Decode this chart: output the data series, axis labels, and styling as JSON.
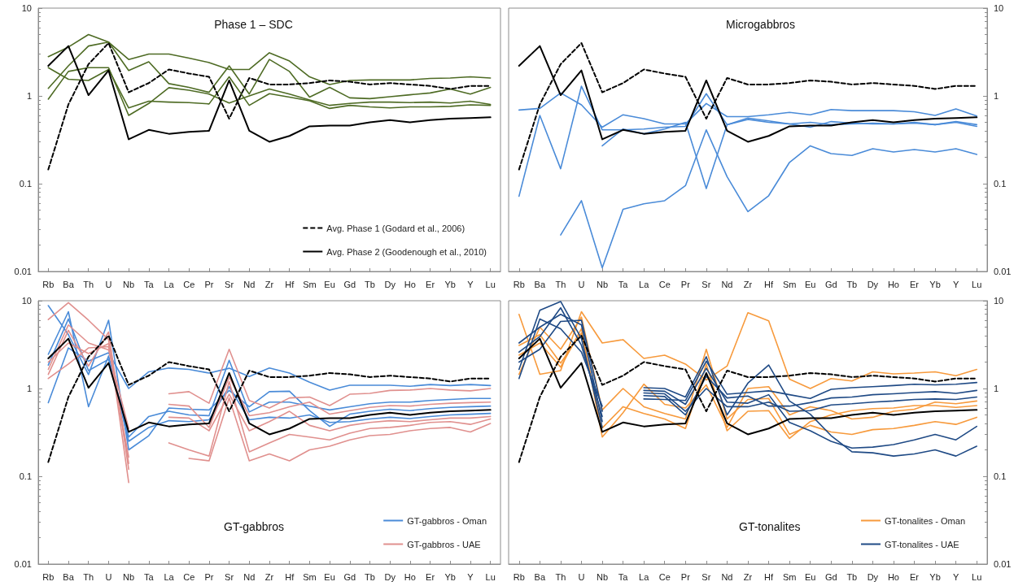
{
  "chart_data": [
    {
      "type": "line",
      "title": "Phase 1 – SDC",
      "categories": [
        "Rb",
        "Ba",
        "Th",
        "U",
        "Nb",
        "Ta",
        "La",
        "Ce",
        "Pr",
        "Sr",
        "Nd",
        "Zr",
        "Hf",
        "Sm",
        "Eu",
        "Gd",
        "Tb",
        "Dy",
        "Ho",
        "Er",
        "Yb",
        "Y",
        "Lu"
      ],
      "log": true,
      "ylim": [
        0.01,
        10
      ],
      "yticks": [
        0.01,
        0.1,
        1,
        10
      ],
      "grid": false,
      "legend": "bottom right",
      "marker": "none",
      "series": [
        {
          "color": "#4e6b24",
          "values": [
            2.8,
            3.6,
            5.0,
            4.1,
            2.6,
            3.0,
            3.0,
            2.7,
            2.4,
            2.0,
            2.0,
            3.1,
            2.5,
            1.65,
            1.35,
            1.5,
            1.52,
            1.52,
            1.52,
            1.58,
            1.6,
            1.65,
            1.6
          ]
        },
        {
          "color": "#4e6b24",
          "values": [
            2.1,
            1.55,
            1.5,
            2.0,
            0.73,
            0.87,
            0.85,
            0.84,
            0.81,
            1.65,
            0.78,
            1.06,
            0.97,
            0.88,
            0.72,
            0.78,
            0.75,
            0.73,
            0.75,
            0.75,
            0.76,
            0.79,
            0.78
          ]
        },
        {
          "color": "#4e6b24",
          "values": [
            1.22,
            2.2,
            3.7,
            4.1,
            1.95,
            2.45,
            1.38,
            1.25,
            1.1,
            2.2,
            1.05,
            2.6,
            1.9,
            0.97,
            1.25,
            0.95,
            0.93,
            0.98,
            1.03,
            1.08,
            1.2,
            1.05,
            1.25
          ]
        },
        {
          "color": "#4e6b24",
          "values": [
            0.92,
            1.9,
            2.1,
            2.1,
            0.6,
            0.82,
            1.24,
            1.16,
            1.05,
            0.83,
            1.0,
            1.2,
            1.05,
            0.9,
            0.78,
            0.82,
            0.85,
            0.85,
            0.84,
            0.85,
            0.83,
            0.87,
            0.8
          ]
        },
        {
          "name": "Avg. Phase 1 (Godard et al., 2006)",
          "color": "#000000",
          "line_style": "dashed",
          "values": [
            0.145,
            0.8,
            2.3,
            4.0,
            1.1,
            1.4,
            2.0,
            1.8,
            1.65,
            0.55,
            1.6,
            1.35,
            1.35,
            1.4,
            1.5,
            1.45,
            1.35,
            1.4,
            1.35,
            1.3,
            1.2,
            1.3,
            1.3
          ]
        },
        {
          "name": "Avg. Phase 2 (Goodenough et al., 2010)",
          "color": "#000000",
          "line_style": "solid",
          "values": [
            2.2,
            3.7,
            1.02,
            1.95,
            0.32,
            0.41,
            0.37,
            0.39,
            0.4,
            1.5,
            0.4,
            0.3,
            0.35,
            0.45,
            0.46,
            0.46,
            0.5,
            0.53,
            0.5,
            0.53,
            0.55,
            0.56,
            0.57
          ]
        }
      ]
    },
    {
      "type": "line",
      "title": "Microgabbros",
      "categories": [
        "Rb",
        "Ba",
        "Th",
        "U",
        "Nb",
        "Ta",
        "La",
        "Ce",
        "Pr",
        "Sr",
        "Nd",
        "Zr",
        "Hf",
        "Sm",
        "Eu",
        "Gd",
        "Tb",
        "Dy",
        "Ho",
        "Er",
        "Yb",
        "Y",
        "Lu"
      ],
      "log": true,
      "ylim": [
        0.01,
        10
      ],
      "yticks": [
        0.01,
        0.1,
        1,
        10
      ],
      "grid": false,
      "legend": false,
      "marker": "none",
      "series": [
        {
          "color": "#4a8bd8",
          "values": [
            0.69,
            0.72,
            1.08,
            0.79,
            0.44,
            0.61,
            0.55,
            0.48,
            0.48,
            0.82,
            0.58,
            0.58,
            0.61,
            0.65,
            0.61,
            0.7,
            0.68,
            0.68,
            0.68,
            0.66,
            0.6,
            0.71,
            0.59
          ]
        },
        {
          "color": "#4a8bd8",
          "values": [
            0.072,
            0.6,
            0.148,
            1.29,
            0.41,
            0.41,
            0.42,
            0.44,
            0.45,
            1.06,
            0.47,
            0.54,
            0.5,
            0.48,
            0.44,
            0.51,
            0.49,
            0.48,
            0.48,
            0.49,
            0.47,
            0.51,
            0.47
          ]
        },
        {
          "color": "#4a8bd8",
          "values": [
            null,
            null,
            0.026,
            0.064,
            0.011,
            0.051,
            0.059,
            0.064,
            0.095,
            0.41,
            0.12,
            0.048,
            0.073,
            0.175,
            0.27,
            0.22,
            0.21,
            0.25,
            0.23,
            0.245,
            0.23,
            0.25,
            0.215
          ]
        },
        {
          "color": "#4a8bd8",
          "values": [
            null,
            null,
            null,
            null,
            0.27,
            0.42,
            0.37,
            0.42,
            0.5,
            0.088,
            0.47,
            0.56,
            0.52,
            0.48,
            0.5,
            0.47,
            0.48,
            0.49,
            0.48,
            0.5,
            0.47,
            0.5,
            0.45
          ]
        },
        {
          "color": "#000000",
          "line_style": "dashed",
          "values": [
            0.145,
            0.8,
            2.3,
            4.0,
            1.1,
            1.4,
            2.0,
            1.8,
            1.65,
            0.55,
            1.6,
            1.35,
            1.35,
            1.4,
            1.5,
            1.45,
            1.35,
            1.4,
            1.35,
            1.3,
            1.2,
            1.3,
            1.3
          ]
        },
        {
          "color": "#000000",
          "line_style": "solid",
          "values": [
            2.2,
            3.7,
            1.02,
            1.95,
            0.32,
            0.41,
            0.37,
            0.39,
            0.4,
            1.5,
            0.4,
            0.3,
            0.35,
            0.45,
            0.46,
            0.46,
            0.5,
            0.53,
            0.5,
            0.53,
            0.55,
            0.56,
            0.57
          ]
        }
      ]
    },
    {
      "type": "line",
      "title": "GT-gabbros",
      "categories": [
        "Rb",
        "Ba",
        "Th",
        "U",
        "Nb",
        "Ta",
        "La",
        "Ce",
        "Pr",
        "Sr",
        "Nd",
        "Zr",
        "Hf",
        "Sm",
        "Eu",
        "Gd",
        "Tb",
        "Dy",
        "Ho",
        "Er",
        "Yb",
        "Y",
        "Lu"
      ],
      "log": true,
      "ylim": [
        0.01,
        10
      ],
      "yticks": [
        0.01,
        0.1,
        1,
        10
      ],
      "grid": false,
      "legend": "bottom right",
      "marker": "none",
      "series": [
        {
          "name": "GT-gabbros - Oman",
          "color": "#4a8bd8",
          "values": [
            0.69,
            2.9,
            2.05,
            2.55,
            1.0,
            1.55,
            1.71,
            1.65,
            1.5,
            1.7,
            1.37,
            1.71,
            1.5,
            1.18,
            0.96,
            1.09,
            1.09,
            1.09,
            1.06,
            1.11,
            1.08,
            1.11,
            1.08
          ]
        },
        {
          "color": "#4a8bd8",
          "values": [
            8.8,
            4.1,
            1.44,
            6.0,
            0.2,
            0.29,
            0.6,
            0.58,
            0.57,
            0.95,
            0.62,
            0.92,
            0.93,
            0.56,
            0.37,
            0.51,
            0.55,
            0.58,
            0.56,
            0.59,
            0.61,
            0.62,
            0.63
          ]
        },
        {
          "color": "#4a8bd8",
          "values": [
            2.45,
            7.5,
            0.62,
            2.35,
            0.28,
            0.48,
            0.55,
            0.5,
            0.49,
            2.1,
            0.54,
            0.7,
            0.7,
            0.63,
            0.57,
            0.62,
            0.67,
            0.7,
            0.7,
            0.73,
            0.75,
            0.77,
            0.77
          ]
        },
        {
          "color": "#4a8bd8",
          "values": [
            1.85,
            6.2,
            1.6,
            2.15,
            0.25,
            0.36,
            0.43,
            0.42,
            0.44,
            1.05,
            0.44,
            0.47,
            0.46,
            0.5,
            0.41,
            0.42,
            0.45,
            0.47,
            0.455,
            0.48,
            0.5,
            0.51,
            0.52
          ]
        },
        {
          "name": "GT-gabbros - UAE",
          "color": "#e0908e",
          "values": [
            6.1,
            9.5,
            6.0,
            3.6,
            0.085,
            null,
            0.87,
            0.92,
            0.68,
            2.8,
            0.73,
            0.6,
            0.78,
            0.8,
            0.64,
            0.86,
            0.88,
            0.95,
            0.96,
            1.0,
            0.96,
            0.94,
            1.0
          ]
        },
        {
          "color": "#e0908e",
          "values": [
            2.0,
            3.3,
            2.5,
            3.25,
            0.14,
            null,
            0.24,
            0.2,
            0.17,
            1.2,
            0.19,
            0.24,
            0.3,
            0.28,
            0.26,
            0.31,
            0.35,
            0.36,
            0.38,
            0.41,
            0.42,
            0.39,
            0.45
          ]
        },
        {
          "color": "#e0908e",
          "values": [
            1.45,
            4.6,
            1.8,
            4.4,
            0.12,
            null,
            0.47,
            0.46,
            0.33,
            0.86,
            0.33,
            0.42,
            0.55,
            0.38,
            0.33,
            0.38,
            0.41,
            0.43,
            0.42,
            0.44,
            0.46,
            0.46,
            0.48
          ]
        },
        {
          "color": "#e0908e",
          "values": [
            1.3,
            1.9,
            2.9,
            3.0,
            0.165,
            null,
            null,
            0.16,
            0.15,
            0.78,
            0.15,
            0.18,
            0.15,
            0.2,
            0.22,
            0.26,
            0.29,
            0.3,
            0.33,
            0.35,
            0.36,
            0.32,
            0.4
          ]
        },
        {
          "color": "#e0908e",
          "values": [
            1.65,
            5.3,
            3.3,
            2.75,
            0.35,
            null,
            0.66,
            0.63,
            0.36,
            1.35,
            0.49,
            0.53,
            0.62,
            0.7,
            0.51,
            0.56,
            0.61,
            0.64,
            0.63,
            0.66,
            0.68,
            0.69,
            0.7
          ]
        },
        {
          "color": "#000000",
          "line_style": "dashed",
          "values": [
            0.145,
            0.8,
            2.3,
            4.0,
            1.1,
            1.4,
            2.0,
            1.8,
            1.65,
            0.55,
            1.6,
            1.35,
            1.35,
            1.4,
            1.5,
            1.45,
            1.35,
            1.4,
            1.35,
            1.3,
            1.2,
            1.3,
            1.3
          ]
        },
        {
          "color": "#000000",
          "line_style": "solid",
          "values": [
            2.2,
            3.7,
            1.02,
            1.95,
            0.32,
            0.41,
            0.37,
            0.39,
            0.4,
            1.5,
            0.4,
            0.3,
            0.35,
            0.45,
            0.46,
            0.46,
            0.5,
            0.53,
            0.5,
            0.53,
            0.55,
            0.56,
            0.57
          ]
        }
      ]
    },
    {
      "type": "line",
      "title": "GT-tonalites",
      "categories": [
        "Rb",
        "Ba",
        "Th",
        "U",
        "Nb",
        "Ta",
        "La",
        "Ce",
        "Pr",
        "Sr",
        "Nd",
        "Zr",
        "Hf",
        "Sm",
        "Eu",
        "Gd",
        "Tb",
        "Dy",
        "Ho",
        "Er",
        "Yb",
        "Y",
        "Lu"
      ],
      "log": true,
      "ylim": [
        0.01,
        10
      ],
      "yticks": [
        0.01,
        0.1,
        1,
        10
      ],
      "grid": false,
      "legend": "bottom right",
      "marker": "none",
      "series": [
        {
          "name": "GT-tonalites - Oman",
          "color": "#f79a3c",
          "values": [
            7.0,
            1.45,
            1.6,
            7.5,
            3.3,
            3.6,
            2.2,
            2.4,
            1.9,
            1.25,
            1.8,
            7.3,
            5.9,
            1.28,
            1.0,
            1.3,
            1.22,
            1.55,
            1.47,
            1.5,
            1.55,
            1.4,
            1.65
          ]
        },
        {
          "color": "#f79a3c",
          "values": [
            1.45,
            5.0,
            2.8,
            6.5,
            0.57,
            1.0,
            0.62,
            0.52,
            0.45,
            2.8,
            0.45,
            0.75,
            0.77,
            0.3,
            0.38,
            0.32,
            0.3,
            0.34,
            0.35,
            0.38,
            0.42,
            0.39,
            0.47
          ]
        },
        {
          "color": "#f79a3c",
          "values": [
            2.4,
            3.3,
            1.75,
            4.8,
            0.28,
            0.53,
            1.12,
            0.66,
            0.6,
            1.1,
            0.36,
            1.0,
            1.05,
            0.5,
            0.62,
            0.56,
            0.45,
            0.47,
            0.55,
            0.58,
            0.7,
            0.67,
            0.72
          ]
        },
        {
          "color": "#f79a3c",
          "values": [
            3.1,
            4.1,
            1.95,
            4.3,
            0.355,
            0.62,
            0.52,
            0.45,
            0.35,
            1.9,
            0.33,
            0.55,
            0.56,
            0.27,
            0.42,
            0.5,
            0.56,
            0.59,
            0.6,
            0.64,
            0.64,
            0.61,
            0.64
          ]
        },
        {
          "name": "GT-tonalites - UAE",
          "color": "#1f4a85",
          "values": [
            1.65,
            7.8,
            9.8,
            3.7,
            0.36,
            null,
            1.02,
            1.0,
            0.8,
            2.3,
            0.5,
            1.15,
            1.85,
            0.72,
            0.51,
            0.29,
            0.19,
            0.185,
            0.17,
            0.18,
            0.2,
            0.17,
            0.22
          ]
        },
        {
          "color": "#1f4a85",
          "values": [
            2.6,
            3.9,
            8.3,
            3.1,
            0.48,
            null,
            0.95,
            0.93,
            0.66,
            1.7,
            0.7,
            0.68,
            0.85,
            0.41,
            0.33,
            0.25,
            0.21,
            0.215,
            0.23,
            0.26,
            0.3,
            0.26,
            0.37
          ]
        },
        {
          "color": "#1f4a85",
          "values": [
            2.0,
            2.8,
            5.8,
            6.0,
            0.55,
            null,
            0.89,
            0.87,
            0.55,
            1.0,
            0.62,
            0.62,
            0.7,
            0.55,
            0.56,
            0.65,
            0.67,
            0.7,
            0.72,
            0.75,
            0.76,
            0.75,
            0.8
          ]
        },
        {
          "color": "#1f4a85",
          "values": [
            3.3,
            5.0,
            7.0,
            5.3,
            0.42,
            null,
            0.83,
            0.81,
            0.5,
            1.38,
            0.78,
            0.82,
            0.63,
            0.63,
            0.69,
            0.78,
            0.8,
            0.85,
            0.87,
            0.9,
            0.92,
            0.88,
            0.95
          ]
        },
        {
          "color": "#1f4a85",
          "values": [
            1.3,
            6.2,
            4.8,
            2.6,
            0.63,
            null,
            0.76,
            0.75,
            0.73,
            2.05,
            0.86,
            0.9,
            0.94,
            0.85,
            0.77,
            0.98,
            1.02,
            1.05,
            1.08,
            1.12,
            1.1,
            1.12,
            1.17
          ]
        },
        {
          "color": "#000000",
          "line_style": "dashed",
          "values": [
            0.145,
            0.8,
            2.3,
            4.0,
            1.1,
            1.4,
            2.0,
            1.8,
            1.65,
            0.55,
            1.6,
            1.35,
            1.35,
            1.4,
            1.5,
            1.45,
            1.35,
            1.4,
            1.35,
            1.3,
            1.2,
            1.3,
            1.3
          ]
        },
        {
          "color": "#000000",
          "line_style": "solid",
          "values": [
            2.2,
            3.7,
            1.02,
            1.95,
            0.32,
            0.41,
            0.37,
            0.39,
            0.4,
            1.5,
            0.4,
            0.3,
            0.35,
            0.45,
            0.46,
            0.46,
            0.5,
            0.53,
            0.5,
            0.53,
            0.55,
            0.56,
            0.57
          ]
        }
      ]
    }
  ]
}
